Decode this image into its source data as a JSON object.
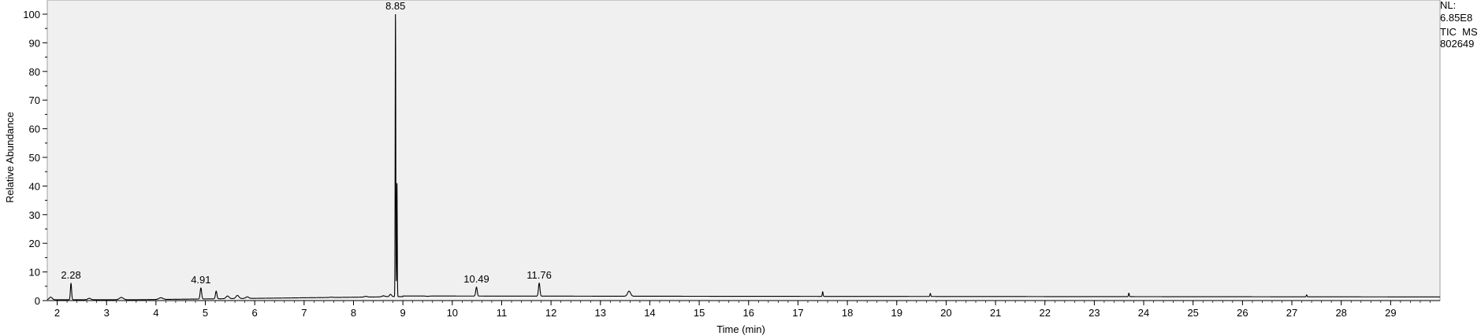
{
  "info": {
    "nl_label": "NL:",
    "nl_value": "6.85E8",
    "scan_filter": "TIC  MS",
    "sample_name": "802649"
  },
  "chart_data": {
    "type": "line",
    "title": "",
    "xlabel": "Time (min)",
    "ylabel": "Relative Abundance",
    "xlim": [
      1.8,
      30.0
    ],
    "ylim": [
      0,
      100
    ],
    "x_ticks": [
      2,
      3,
      4,
      5,
      6,
      7,
      8,
      9,
      10,
      11,
      12,
      13,
      14,
      15,
      16,
      17,
      18,
      19,
      20,
      21,
      22,
      23,
      24,
      25,
      26,
      27,
      28,
      29
    ],
    "y_ticks": [
      0,
      10,
      20,
      30,
      40,
      50,
      60,
      70,
      80,
      90,
      100
    ],
    "baseline": 1.0,
    "peaks": [
      {
        "rt": 1.87,
        "height": 1.2,
        "width": 0.03
      },
      {
        "rt": 2.28,
        "height": 6.0,
        "width": 0.012,
        "label": "2.28"
      },
      {
        "rt": 2.65,
        "height": 0.8,
        "width": 0.03
      },
      {
        "rt": 3.3,
        "height": 1.1,
        "width": 0.04
      },
      {
        "rt": 4.1,
        "height": 1.0,
        "width": 0.04
      },
      {
        "rt": 4.91,
        "height": 4.4,
        "width": 0.015,
        "label": "4.91"
      },
      {
        "rt": 5.22,
        "height": 3.3,
        "width": 0.015
      },
      {
        "rt": 5.45,
        "height": 1.6,
        "width": 0.03
      },
      {
        "rt": 5.65,
        "height": 1.8,
        "width": 0.03
      },
      {
        "rt": 5.85,
        "height": 1.3,
        "width": 0.03
      },
      {
        "rt": 7.55,
        "height": 1.2,
        "width": 0.03
      },
      {
        "rt": 8.25,
        "height": 1.5,
        "width": 0.03
      },
      {
        "rt": 8.6,
        "height": 1.7,
        "width": 0.03
      },
      {
        "rt": 8.75,
        "height": 2.2,
        "width": 0.02
      },
      {
        "rt": 8.85,
        "height": 100,
        "width": 0.006,
        "label": "8.85"
      },
      {
        "rt": 8.88,
        "height": 41,
        "width": 0.006
      },
      {
        "rt": 9.5,
        "height": 1.5,
        "width": 0.03
      },
      {
        "rt": 10.49,
        "height": 4.7,
        "width": 0.015,
        "label": "10.49"
      },
      {
        "rt": 11.76,
        "height": 6.1,
        "width": 0.015,
        "label": "11.76"
      },
      {
        "rt": 13.58,
        "height": 3.3,
        "width": 0.03
      },
      {
        "rt": 17.5,
        "height": 3.1,
        "width": 0.008
      },
      {
        "rt": 19.68,
        "height": 2.5,
        "width": 0.008
      },
      {
        "rt": 23.7,
        "height": 2.6,
        "width": 0.008
      },
      {
        "rt": 27.3,
        "height": 2.0,
        "width": 0.008
      }
    ]
  }
}
